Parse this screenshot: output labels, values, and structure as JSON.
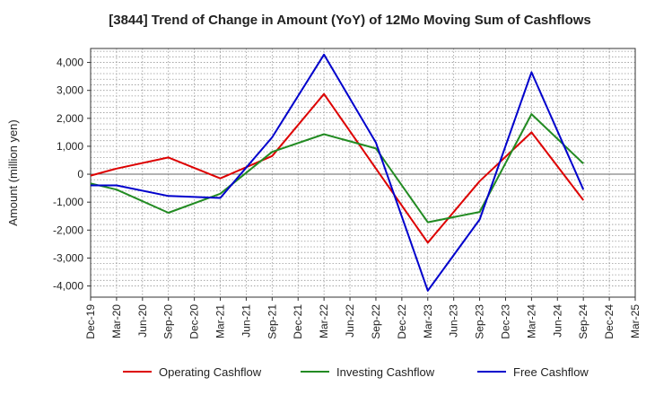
{
  "chart_data": {
    "type": "line",
    "title": "[3844]  Trend of Change in Amount (YoY) of 12Mo Moving Sum of Cashflows",
    "xlabel": "",
    "ylabel": "Amount (million yen)",
    "ylim": [
      -4400,
      4500
    ],
    "yticks": [
      -4000,
      -3000,
      -2000,
      -1000,
      0,
      1000,
      2000,
      3000,
      4000
    ],
    "ytick_labels": [
      "-4,000",
      "-3,000",
      "-2,000",
      "-1,000",
      "0",
      "1,000",
      "2,000",
      "3,000",
      "4,000"
    ],
    "categories": [
      "Dec-19",
      "Mar-20",
      "Jun-20",
      "Sep-20",
      "Dec-20",
      "Mar-21",
      "Jun-21",
      "Sep-21",
      "Dec-21",
      "Mar-22",
      "Jun-22",
      "Sep-22",
      "Dec-22",
      "Mar-23",
      "Jun-23",
      "Sep-23",
      "Dec-23",
      "Mar-24",
      "Jun-24",
      "Sep-24",
      "Dec-24",
      "Mar-25"
    ],
    "grid": true,
    "legend_position": "bottom",
    "series": [
      {
        "name": "Operating Cashflow",
        "color": "#dd0000",
        "values": [
          -50,
          200,
          null,
          600,
          null,
          -150,
          null,
          650,
          null,
          2870,
          null,
          200,
          null,
          -2450,
          null,
          -250,
          null,
          1500,
          null,
          -930,
          null,
          null
        ]
      },
      {
        "name": "Investing Cashflow",
        "color": "#228b22",
        "values": [
          -330,
          -550,
          null,
          -1380,
          null,
          -700,
          null,
          800,
          null,
          1430,
          null,
          920,
          null,
          -1720,
          null,
          -1350,
          null,
          2150,
          null,
          380,
          null,
          null
        ]
      },
      {
        "name": "Free Cashflow",
        "color": "#0000cc",
        "values": [
          -400,
          -400,
          null,
          -780,
          null,
          -850,
          null,
          1320,
          null,
          4280,
          null,
          1130,
          null,
          -4170,
          null,
          -1620,
          null,
          3650,
          null,
          -550,
          null,
          null
        ]
      }
    ]
  }
}
